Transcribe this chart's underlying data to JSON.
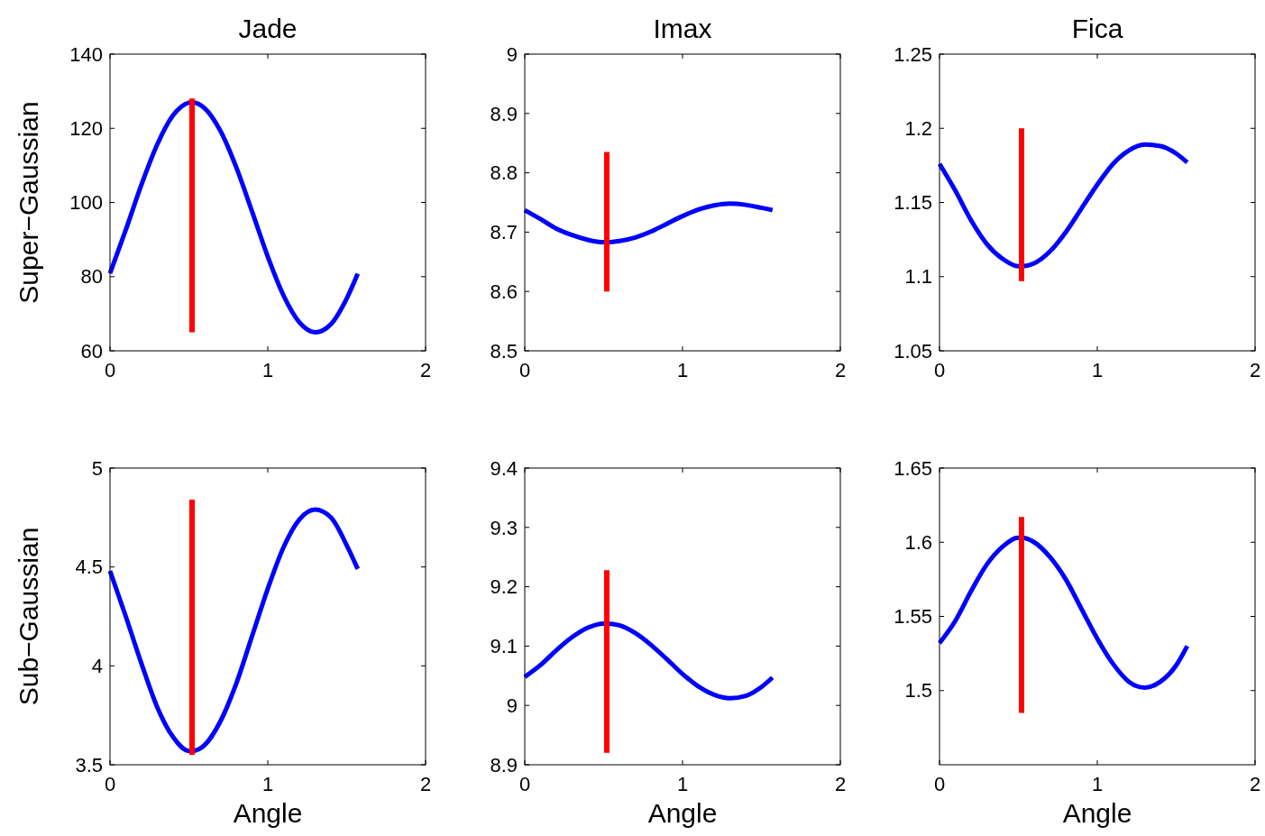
{
  "chart_data": [
    {
      "type": "line",
      "title": "Jade",
      "ylabel": "Super−Gaussian",
      "xlim": [
        0,
        2
      ],
      "xticks": [
        0,
        1,
        2
      ],
      "ylim": [
        60,
        140
      ],
      "yticks": [
        60,
        80,
        100,
        120,
        140
      ],
      "grid": false,
      "series": [
        {
          "color": "#0000ff",
          "x": [
            0,
            0.1,
            0.2,
            0.3,
            0.4,
            0.5,
            0.52,
            0.6,
            0.7,
            0.8,
            0.9,
            1.0,
            1.1,
            1.2,
            1.3,
            1.4,
            1.5,
            1.57
          ],
          "values": [
            80.9,
            92.6,
            104.9,
            115.7,
            123.5,
            126.9,
            127,
            125.4,
            119.3,
            109.5,
            97.6,
            85.4,
            74.9,
            67.7,
            65,
            67.2,
            74.1,
            80.8
          ]
        },
        {
          "color": "#ff0000",
          "x": [
            0.52,
            0.52
          ],
          "values": [
            65,
            128
          ]
        }
      ]
    },
    {
      "type": "line",
      "title": "Imax",
      "xlim": [
        0,
        2
      ],
      "xticks": [
        0,
        1,
        2
      ],
      "ylim": [
        8.5,
        9
      ],
      "yticks": [
        8.5,
        8.6,
        8.7,
        8.8,
        8.9,
        9
      ],
      "grid": false,
      "series": [
        {
          "color": "#0000ff",
          "x": [
            0,
            0.1,
            0.2,
            0.3,
            0.4,
            0.5,
            0.52,
            0.6,
            0.7,
            0.8,
            0.9,
            1.0,
            1.1,
            1.2,
            1.3,
            1.4,
            1.5,
            1.57
          ],
          "values": [
            8.737,
            8.722,
            8.706,
            8.695,
            8.687,
            8.683,
            8.683,
            8.685,
            8.691,
            8.701,
            8.714,
            8.727,
            8.738,
            8.745,
            8.748,
            8.746,
            8.741,
            8.737
          ]
        },
        {
          "color": "#ff0000",
          "x": [
            0.52,
            0.52
          ],
          "values": [
            8.6,
            8.835
          ]
        }
      ]
    },
    {
      "type": "line",
      "title": "Fica",
      "xlim": [
        0,
        2
      ],
      "xticks": [
        0,
        1,
        2
      ],
      "ylim": [
        1.05,
        1.25
      ],
      "yticks": [
        1.05,
        1.1,
        1.15,
        1.2,
        1.25
      ],
      "grid": false,
      "series": [
        {
          "color": "#0000ff",
          "x": [
            0,
            0.1,
            0.2,
            0.3,
            0.4,
            0.5,
            0.52,
            0.6,
            0.7,
            0.8,
            0.9,
            1.0,
            1.1,
            1.2,
            1.3,
            1.4,
            1.5,
            1.57
          ],
          "values": [
            1.176,
            1.158,
            1.138,
            1.122,
            1.112,
            1.107,
            1.107,
            1.109,
            1.117,
            1.13,
            1.146,
            1.162,
            1.176,
            1.185,
            1.189,
            1.188,
            1.183,
            1.177
          ]
        },
        {
          "color": "#ff0000",
          "x": [
            0.52,
            0.52
          ],
          "values": [
            1.097,
            1.2
          ]
        }
      ]
    },
    {
      "type": "line",
      "ylabel": "Sub−Gaussian",
      "xlabel": "Angle",
      "xlim": [
        0,
        2
      ],
      "xticks": [
        0,
        1,
        2
      ],
      "ylim": [
        3.5,
        5
      ],
      "yticks": [
        3.5,
        4,
        4.5,
        5
      ],
      "grid": false,
      "series": [
        {
          "color": "#0000ff",
          "x": [
            0,
            0.1,
            0.2,
            0.3,
            0.4,
            0.5,
            0.52,
            0.6,
            0.7,
            0.8,
            0.9,
            1.0,
            1.1,
            1.2,
            1.3,
            1.4,
            1.5,
            1.57
          ],
          "values": [
            4.48,
            4.25,
            4.01,
            3.79,
            3.64,
            3.57,
            3.57,
            3.6,
            3.72,
            3.91,
            4.15,
            4.39,
            4.6,
            4.74,
            4.79,
            4.75,
            4.61,
            4.49
          ]
        },
        {
          "color": "#ff0000",
          "x": [
            0.52,
            0.52
          ],
          "values": [
            3.55,
            4.84
          ]
        }
      ]
    },
    {
      "type": "line",
      "xlabel": "Angle",
      "xlim": [
        0,
        2
      ],
      "xticks": [
        0,
        1,
        2
      ],
      "ylim": [
        8.9,
        9.4
      ],
      "yticks": [
        8.9,
        9,
        9.1,
        9.2,
        9.3,
        9.4
      ],
      "grid": false,
      "series": [
        {
          "color": "#0000ff",
          "x": [
            0,
            0.1,
            0.2,
            0.3,
            0.4,
            0.5,
            0.52,
            0.6,
            0.7,
            0.8,
            0.9,
            1.0,
            1.1,
            1.2,
            1.3,
            1.4,
            1.5,
            1.57
          ],
          "values": [
            9.048,
            9.068,
            9.093,
            9.115,
            9.131,
            9.138,
            9.138,
            9.135,
            9.122,
            9.102,
            9.078,
            9.053,
            9.032,
            9.018,
            9.012,
            9.016,
            9.031,
            9.047
          ]
        },
        {
          "color": "#ff0000",
          "x": [
            0.52,
            0.52
          ],
          "values": [
            8.92,
            9.228
          ]
        }
      ]
    },
    {
      "type": "line",
      "xlabel": "Angle",
      "xlim": [
        0,
        2
      ],
      "xticks": [
        0,
        1,
        2
      ],
      "ylim": [
        1.45,
        1.65
      ],
      "yticks": [
        1.5,
        1.55,
        1.6,
        1.65
      ],
      "grid": false,
      "series": [
        {
          "color": "#0000ff",
          "x": [
            0,
            0.1,
            0.2,
            0.3,
            0.4,
            0.5,
            0.52,
            0.6,
            0.7,
            0.8,
            0.9,
            1.0,
            1.1,
            1.2,
            1.3,
            1.4,
            1.5,
            1.57
          ],
          "values": [
            1.532,
            1.547,
            1.567,
            1.585,
            1.597,
            1.603,
            1.603,
            1.6,
            1.59,
            1.575,
            1.555,
            1.535,
            1.518,
            1.506,
            1.502,
            1.506,
            1.517,
            1.53
          ]
        },
        {
          "color": "#ff0000",
          "x": [
            0.52,
            0.52
          ],
          "values": [
            1.485,
            1.617
          ]
        }
      ]
    }
  ]
}
